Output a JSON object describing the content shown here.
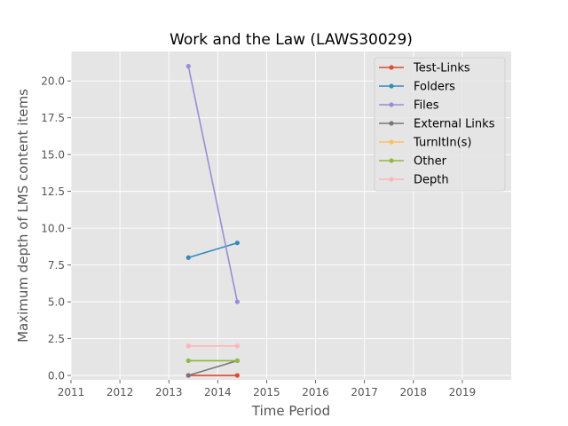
{
  "chart_data": {
    "type": "line",
    "title": "Work and the Law (LAWS30029)",
    "xlabel": "Time Period",
    "ylabel": "Maximum depth of LMS content items",
    "xlim": [
      2011,
      2020
    ],
    "ylim": [
      -0.3,
      22.0
    ],
    "x_ticks": [
      {
        "value": 2011,
        "label": "2011"
      },
      {
        "value": 2012,
        "label": "2012"
      },
      {
        "value": 2013,
        "label": "2013"
      },
      {
        "value": 2014,
        "label": "2014"
      },
      {
        "value": 2015,
        "label": "2015"
      },
      {
        "value": 2016,
        "label": "2016"
      },
      {
        "value": 2017,
        "label": "2017"
      },
      {
        "value": 2018,
        "label": "2018"
      },
      {
        "value": 2019,
        "label": "2019"
      }
    ],
    "y_ticks": [
      {
        "value": 0,
        "label": "0.0"
      },
      {
        "value": 2.5,
        "label": "2.5"
      },
      {
        "value": 5,
        "label": "5.0"
      },
      {
        "value": 7.5,
        "label": "7.5"
      },
      {
        "value": 10,
        "label": "10.0"
      },
      {
        "value": 12.5,
        "label": "12.5"
      },
      {
        "value": 15,
        "label": "15.0"
      },
      {
        "value": 17.5,
        "label": "17.5"
      },
      {
        "value": 20,
        "label": "20.0"
      }
    ],
    "grid": true,
    "legend_position": "top-right",
    "x": [
      2013.4,
      2014.4
    ],
    "series": [
      {
        "name": "Test-Links",
        "color": "#e24a33",
        "values": [
          0,
          0
        ]
      },
      {
        "name": "Folders",
        "color": "#348abd",
        "values": [
          8,
          9
        ]
      },
      {
        "name": "Files",
        "color": "#988ed5",
        "values": [
          21,
          5
        ]
      },
      {
        "name": "External Links",
        "color": "#777777",
        "values": [
          0,
          1
        ]
      },
      {
        "name": "TurnItIn(s)",
        "color": "#fbc15e",
        "values": [
          1,
          1
        ]
      },
      {
        "name": "Other",
        "color": "#8eba42",
        "values": [
          1,
          1
        ]
      },
      {
        "name": "Depth",
        "color": "#ffb5b8",
        "values": [
          2,
          2
        ]
      }
    ]
  }
}
